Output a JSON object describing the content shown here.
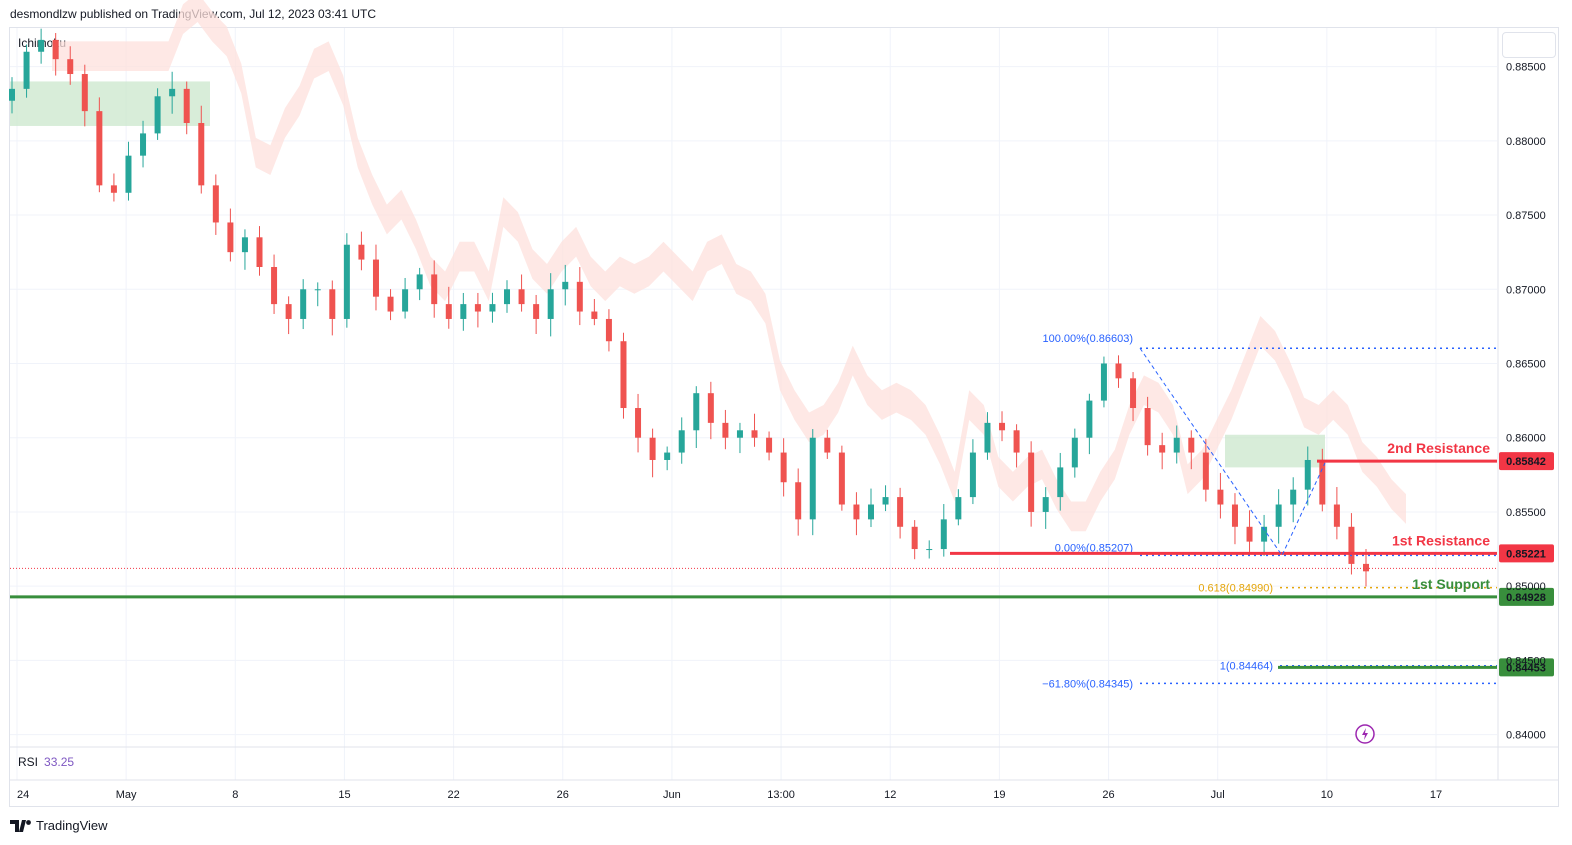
{
  "header": {
    "publisher_line": "desmondlzw published on TradingView.com, Jul 12, 2023 03:41 UTC"
  },
  "indicator": {
    "label": "Ichimoku"
  },
  "rsi": {
    "label": "RSI",
    "value": "33.25"
  },
  "footer": {
    "brand": "TradingView"
  },
  "colors": {
    "bull": "#26a69a",
    "bear": "#ef5350",
    "cloud_bull": "#c8e6c9",
    "cloud_bear": "#fde0dc",
    "support": "#388e3c",
    "resistance": "#f23645",
    "fib": "#2962ff",
    "fib_gold": "#e5a50a"
  },
  "chart_data": {
    "type": "candlestick",
    "y_axis": {
      "ticks": [
        "0.88500",
        "0.88000",
        "0.87500",
        "0.87000",
        "0.86500",
        "0.86000",
        "0.85500",
        "0.85000",
        "0.84500",
        "0.84000"
      ],
      "ylim": [
        0.8393,
        0.8876
      ]
    },
    "x_axis": {
      "ticks": [
        "24",
        "May",
        "8",
        "15",
        "22",
        "26",
        "Jun",
        "13:00",
        "12",
        "19",
        "26",
        "Jul",
        "10",
        "17"
      ]
    },
    "price_path": [
      0.8835,
      0.886,
      0.8868,
      0.8855,
      0.8845,
      0.882,
      0.877,
      0.8765,
      0.879,
      0.8805,
      0.883,
      0.8835,
      0.8812,
      0.877,
      0.8745,
      0.8725,
      0.8735,
      0.8715,
      0.869,
      0.868,
      0.87,
      0.87,
      0.868,
      0.873,
      0.872,
      0.8695,
      0.8685,
      0.87,
      0.871,
      0.869,
      0.868,
      0.869,
      0.8685,
      0.869,
      0.87,
      0.869,
      0.868,
      0.87,
      0.8705,
      0.8685,
      0.868,
      0.8665,
      0.862,
      0.86,
      0.8585,
      0.859,
      0.8605,
      0.863,
      0.861,
      0.86,
      0.8605,
      0.86,
      0.859,
      0.857,
      0.8545,
      0.86,
      0.859,
      0.8555,
      0.8545,
      0.8555,
      0.856,
      0.854,
      0.8525,
      0.8525,
      0.8545,
      0.856,
      0.859,
      0.861,
      0.8605,
      0.859,
      0.855,
      0.856,
      0.858,
      0.86,
      0.8625,
      0.865,
      0.864,
      0.862,
      0.8595,
      0.859,
      0.86,
      0.859,
      0.8565,
      0.8555,
      0.854,
      0.853,
      0.854,
      0.8555,
      0.8565,
      0.8585,
      0.8555,
      0.854,
      0.8515,
      0.851
    ],
    "support_resistance": [
      {
        "label": "2nd Resistance",
        "value": "0.85842"
      },
      {
        "label": "1st Resistance",
        "value": "0.85221"
      },
      {
        "label": "1st Support",
        "value": "0.84928"
      },
      {
        "label": "",
        "value": "0.84453"
      }
    ],
    "fibonacci": [
      {
        "label": "100.00%(0.86603)",
        "value": 0.86603
      },
      {
        "label": "0.00%(0.85207)",
        "value": 0.85207
      },
      {
        "label": "−61.80%(0.84345)",
        "value": 0.84345
      },
      {
        "label": "0.618(0.84990)",
        "value": 0.8499
      },
      {
        "label": "1(0.84464)",
        "value": 0.84464
      }
    ],
    "current_price": 0.8512
  }
}
